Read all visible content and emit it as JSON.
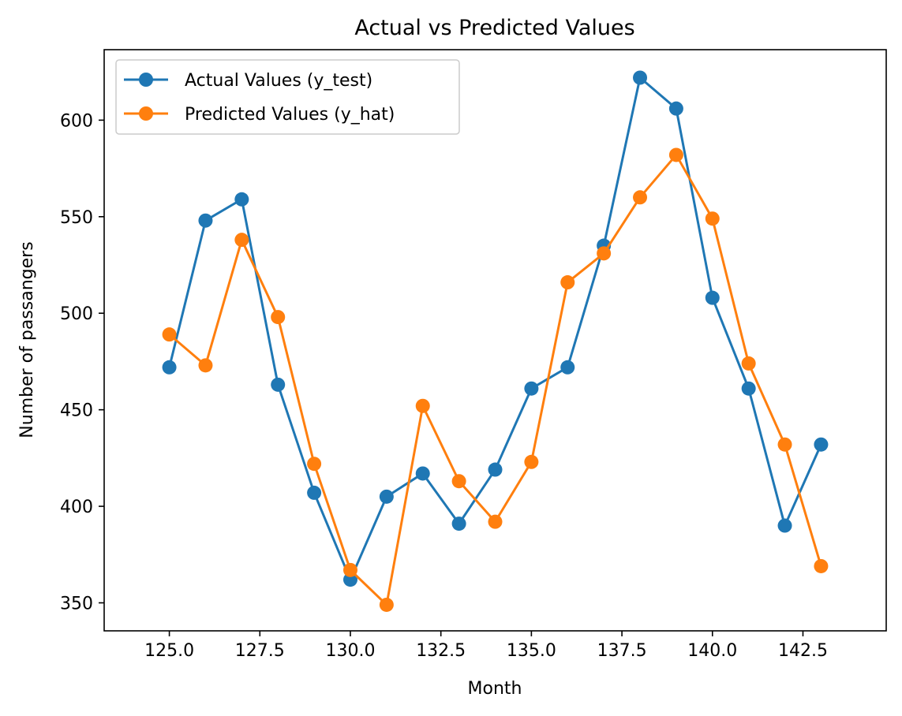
{
  "chart_data": {
    "type": "line",
    "title": "Actual vs Predicted Values",
    "xlabel": "Month",
    "ylabel": "Number of passangers",
    "x": [
      125,
      126,
      127,
      128,
      129,
      130,
      131,
      132,
      133,
      134,
      135,
      136,
      137,
      138,
      139,
      140,
      141,
      142,
      143
    ],
    "series": [
      {
        "name": "Actual Values (y_test)",
        "color": "#1f77b4",
        "values": [
          472,
          548,
          559,
          463,
          407,
          362,
          405,
          417,
          391,
          419,
          461,
          472,
          535,
          622,
          606,
          508,
          461,
          390,
          432
        ]
      },
      {
        "name": "Predicted Values (y_hat)",
        "color": "#ff7f0e",
        "values": [
          489,
          473,
          538,
          498,
          422,
          367,
          349,
          452,
          413,
          392,
          423,
          516,
          531,
          560,
          582,
          549,
          474,
          432,
          369
        ]
      }
    ],
    "xlim": [
      123.2,
      144.8
    ],
    "ylim": [
      335.5,
      636.5
    ],
    "xticks": [
      125.0,
      127.5,
      130.0,
      132.5,
      135.0,
      137.5,
      140.0,
      142.5
    ],
    "xtick_labels": [
      "125.0",
      "127.5",
      "130.0",
      "132.5",
      "135.0",
      "137.5",
      "140.0",
      "142.5"
    ],
    "yticks": [
      350,
      400,
      450,
      500,
      550,
      600
    ],
    "ytick_labels": [
      "350",
      "400",
      "450",
      "500",
      "550",
      "600"
    ],
    "grid": false,
    "legend_position": "upper-left"
  }
}
